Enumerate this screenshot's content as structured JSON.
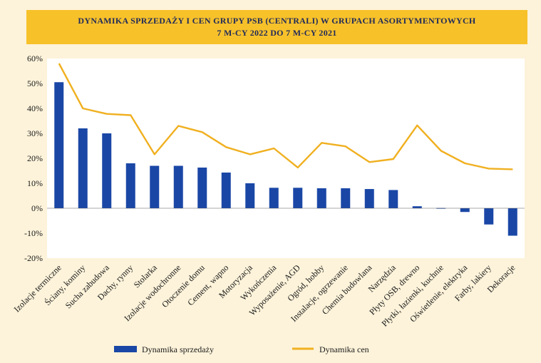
{
  "chart_data": {
    "type": "bar",
    "title_line1": "DYNAMIKA SPRZEDAŻY I CEN GRUPY PSB (CENTRALI) W GRUPACH ASORTYMENTOWYCH",
    "title_line2": "7 M-CY 2022 DO 7 M-CY 2021",
    "categories": [
      "Izolacje termiczne",
      "Ściany, kominy",
      "Sucha zabudowa",
      "Dachy, rynny",
      "Stolarka",
      "Izolacje wodochronne",
      "Otoczenie domu",
      "Cement, wapno",
      "Motoryzacja",
      "Wykończenia",
      "Wyposażenie, AGD",
      "Ogród, hobby",
      "Instalacje, ogrzewanie",
      "Chemia budowlana",
      "Narzędzia",
      "Płyty OSB, drewno",
      "Płytki, łazienki, kuchnie",
      "Oświetlenie, elektryka",
      "Farby, lakiery",
      "Dekoracje"
    ],
    "series": [
      {
        "name": "Dynamika sprzedaży",
        "type": "bar",
        "color": "#1a47a6",
        "values": [
          50.5,
          32,
          30,
          18,
          17,
          17,
          16.3,
          14.3,
          10,
          8.2,
          8.2,
          8,
          8,
          7.7,
          7.3,
          0.8,
          0.1,
          -1.5,
          -6.5,
          -11
        ]
      },
      {
        "name": "Dynamika cen",
        "type": "line",
        "color": "#f0b020",
        "values": [
          58,
          40,
          37.8,
          37.3,
          21.6,
          33,
          30.5,
          24.5,
          21.6,
          24,
          16.3,
          26.2,
          24.8,
          18.5,
          19.7,
          33.2,
          23,
          18,
          15.9,
          15.6
        ]
      }
    ],
    "y_ticks": [
      "60%",
      "50%",
      "40%",
      "30%",
      "20%",
      "10%",
      "0%",
      "-10%",
      "-20%"
    ],
    "ylim": [
      -20,
      60
    ],
    "xlabel": "",
    "ylabel": "",
    "grid": false,
    "legend_position": "bottom"
  }
}
